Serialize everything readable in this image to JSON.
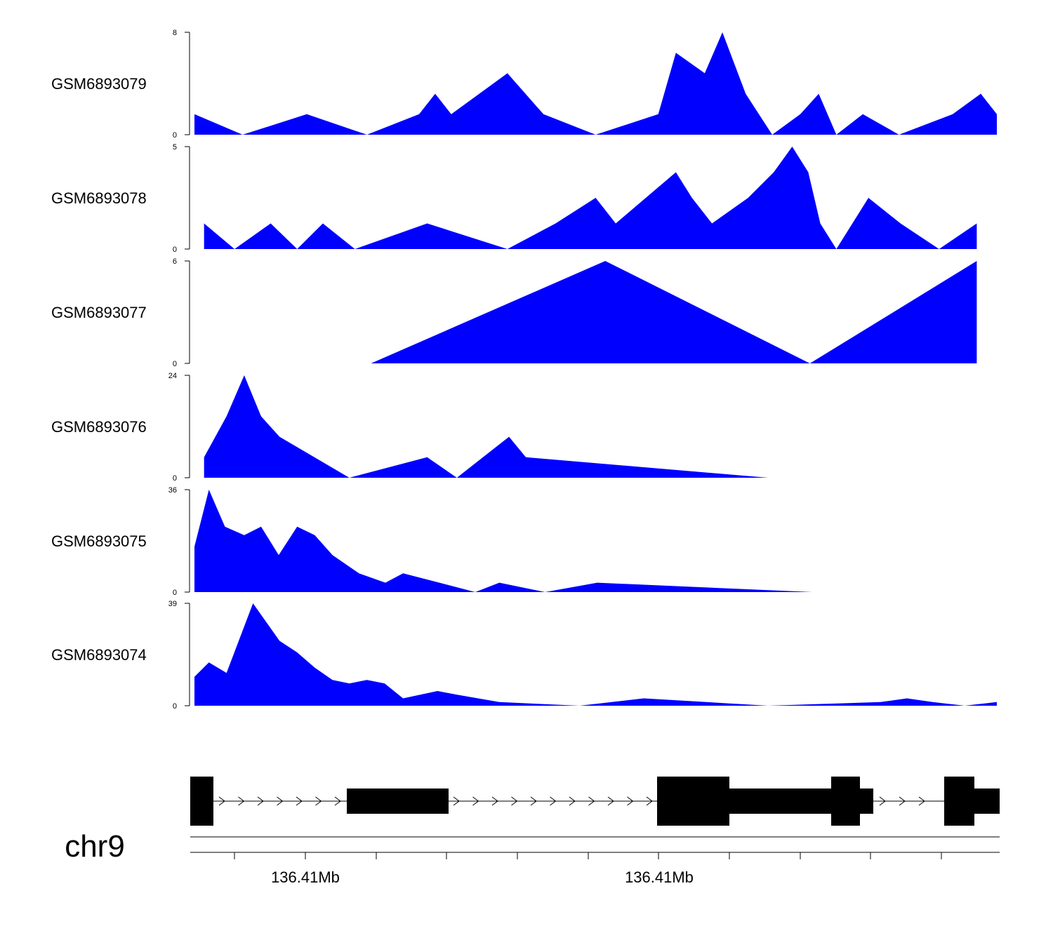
{
  "chart_data": {
    "type": "area",
    "chromosome": "chr9",
    "fill_color": "#0000ff",
    "gene_color": "#000000",
    "x_axis": {
      "labels": [
        "136.41Mb",
        "136.41Mb"
      ]
    },
    "tracks": [
      {
        "name": "GSM6893079",
        "ylim": [
          0,
          8
        ],
        "x": [
          0,
          0.06,
          0.14,
          0.215,
          0.28,
          0.3,
          0.32,
          0.39,
          0.435,
          0.5,
          0.578,
          0.6,
          0.636,
          0.658,
          0.687,
          0.72,
          0.755,
          0.778,
          0.8,
          0.833,
          0.878,
          0.945,
          0.98,
          1
        ],
        "values": [
          1.6,
          0,
          1.6,
          0,
          1.6,
          3.2,
          1.6,
          4.8,
          1.6,
          0,
          1.6,
          6.4,
          4.8,
          8,
          3.2,
          0,
          1.6,
          3.2,
          0,
          1.6,
          0,
          1.6,
          3.2,
          1.6
        ]
      },
      {
        "name": "GSM6893078",
        "ylim": [
          0,
          5
        ],
        "x": [
          0.012,
          0.05,
          0.095,
          0.128,
          0.16,
          0.2,
          0.29,
          0.39,
          0.45,
          0.5,
          0.525,
          0.6,
          0.62,
          0.645,
          0.69,
          0.722,
          0.745,
          0.765,
          0.78,
          0.8,
          0.84,
          0.88,
          0.928,
          0.975
        ],
        "values": [
          1.25,
          0,
          1.25,
          0,
          1.25,
          0,
          1.25,
          0,
          1.25,
          2.5,
          1.25,
          3.75,
          2.5,
          1.25,
          2.5,
          3.75,
          5,
          3.75,
          1.25,
          0,
          2.5,
          1.25,
          0,
          1.25
        ]
      },
      {
        "name": "GSM6893077",
        "ylim": [
          0,
          6
        ],
        "x": [
          0.22,
          0.512,
          0.767,
          0.975
        ],
        "values": [
          0,
          6,
          0,
          6
        ]
      },
      {
        "name": "GSM6893076",
        "ylim": [
          0,
          24
        ],
        "x": [
          0.012,
          0.04,
          0.062,
          0.083,
          0.106,
          0.193,
          0.29,
          0.327,
          0.392,
          0.413,
          0.715
        ],
        "values": [
          4.8,
          14.4,
          24,
          14.4,
          9.6,
          0,
          4.8,
          0,
          9.6,
          4.8,
          0
        ]
      },
      {
        "name": "GSM6893075",
        "ylim": [
          0,
          36
        ],
        "x": [
          0,
          0.018,
          0.038,
          0.062,
          0.083,
          0.105,
          0.128,
          0.15,
          0.172,
          0.205,
          0.238,
          0.26,
          0.35,
          0.38,
          0.437,
          0.502,
          0.77
        ],
        "values": [
          16,
          36,
          23,
          20,
          23,
          13,
          23,
          20,
          13,
          6.6,
          3.3,
          6.6,
          0,
          3.3,
          0,
          3.3,
          0
        ]
      },
      {
        "name": "GSM6893074",
        "ylim": [
          0,
          39
        ],
        "x": [
          0,
          0.018,
          0.04,
          0.073,
          0.106,
          0.128,
          0.15,
          0.172,
          0.193,
          0.215,
          0.237,
          0.26,
          0.303,
          0.327,
          0.38,
          0.48,
          0.56,
          0.715,
          0.855,
          0.888,
          0.92,
          0.96,
          1
        ],
        "values": [
          11,
          16.5,
          12.5,
          39,
          24.7,
          20.3,
          14.5,
          9.8,
          8.5,
          9.8,
          8.5,
          2.8,
          5.6,
          4.2,
          1.4,
          0,
          2.8,
          0,
          1.4,
          2.8,
          1.4,
          0,
          1.4
        ]
      }
    ]
  }
}
